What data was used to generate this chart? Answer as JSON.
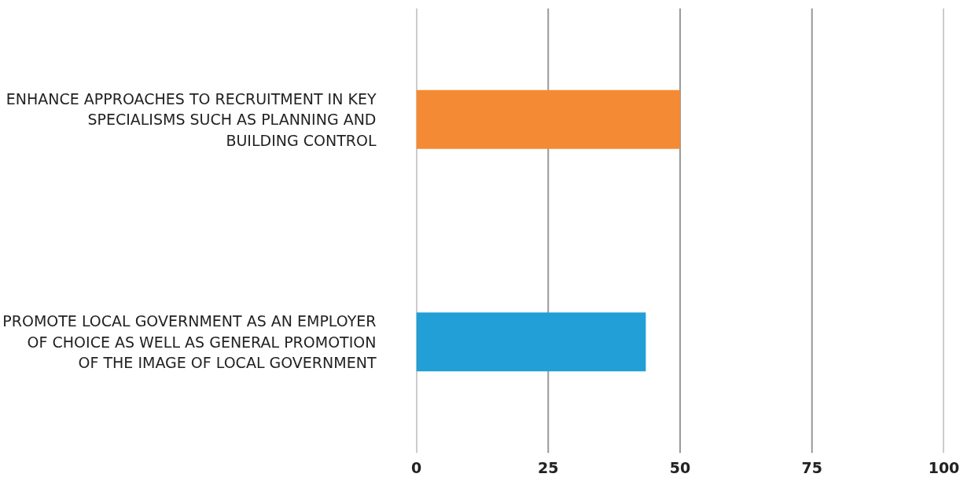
{
  "chart_data": {
    "type": "bar",
    "orientation": "horizontal",
    "categories": [
      "ENHANCE APPROACHES TO RECRUITMENT IN KEY SPECIALISMS SUCH AS PLANNING AND BUILDING CONTROL",
      "PROMOTE LOCAL GOVERNMENT AS AN EMPLOYER OF CHOICE AS WELL AS GENERAL PROMOTION OF THE IMAGE OF LOCAL GOVERNMENT"
    ],
    "values": [
      50,
      43.5
    ],
    "colors": [
      "#f58a34",
      "#219fd6"
    ],
    "xlim": [
      0,
      100
    ],
    "xticks": [
      0,
      25,
      50,
      75,
      100
    ],
    "grid": "x"
  }
}
